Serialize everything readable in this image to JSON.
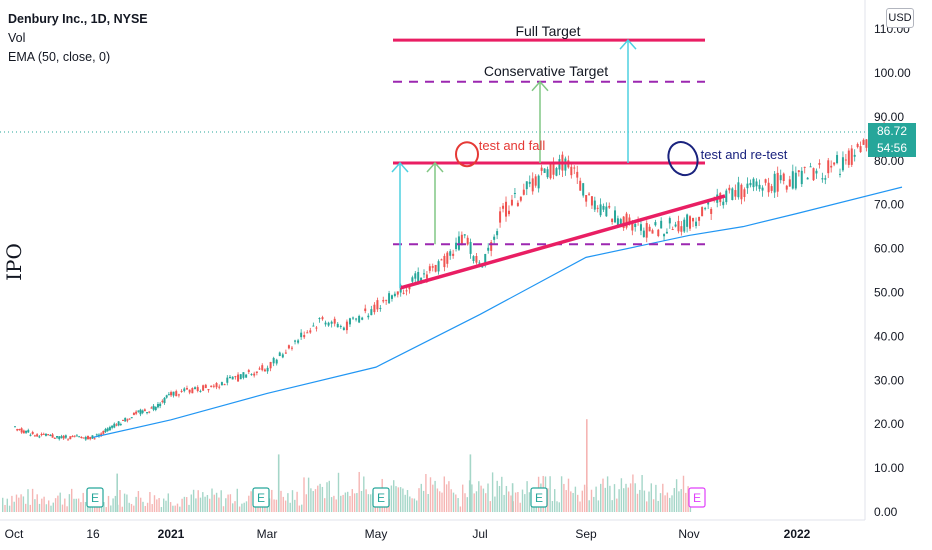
{
  "legend": {
    "symbol": "Denbury Inc., 1D, NYSE",
    "vol": "Vol",
    "ema": "EMA (50, close, 0)"
  },
  "side_label": "IPO",
  "currency_button": "USD",
  "last_price": "86.72",
  "countdown": "54:56",
  "annotations": {
    "full_target": "Full Target",
    "conservative_target": "Conservative Target",
    "test_and_fail": "test and fall",
    "test_and_retest": "test and re-test"
  },
  "earnings_marker": "E",
  "colors": {
    "up": "#26a69a",
    "down": "#ef5350",
    "ema": "#2196f3",
    "trendline": "#e91e63",
    "dashed": "#9c27b0",
    "target_arrow": "#4dd0e1",
    "cons_arrow": "#81c784",
    "retest_circle": "#1a237e",
    "fail_circle": "#e53935"
  },
  "chart_data": {
    "type": "candlestick",
    "title": "Denbury Inc., 1D, NYSE",
    "y_ticks": [
      0,
      10,
      20,
      30,
      40,
      50,
      60,
      70,
      80,
      90,
      100,
      110
    ],
    "ylim": [
      0,
      112
    ],
    "x_ticks": [
      "Oct",
      "16",
      "2021",
      "Mar",
      "May",
      "Jul",
      "Sep",
      "Nov",
      "2022"
    ],
    "levels": {
      "full_target": 107.5,
      "conservative_target": 98,
      "resistance": 79.5,
      "support_dashed": 61
    },
    "trendline": {
      "start": [
        "May",
        51
      ],
      "end": [
        "Nov+",
        72
      ]
    },
    "ema_50": [
      [
        1,
        17
      ],
      [
        2,
        21
      ],
      [
        3,
        27
      ],
      [
        4,
        33
      ],
      [
        5,
        45
      ],
      [
        6,
        58
      ],
      [
        7,
        63
      ],
      [
        7.5,
        65
      ],
      [
        8,
        68
      ],
      [
        9,
        74
      ]
    ],
    "price_path": [
      [
        0,
        19
      ],
      [
        0.3,
        17.5
      ],
      [
        0.6,
        17
      ],
      [
        1,
        17
      ],
      [
        1.2,
        19
      ],
      [
        1.5,
        22
      ],
      [
        1.8,
        24
      ],
      [
        2,
        27
      ],
      [
        2.3,
        28
      ],
      [
        2.6,
        30
      ],
      [
        3,
        33
      ],
      [
        3.3,
        40
      ],
      [
        3.5,
        44
      ],
      [
        3.7,
        42
      ],
      [
        4,
        47
      ],
      [
        4.3,
        52
      ],
      [
        4.6,
        56
      ],
      [
        4.85,
        63
      ],
      [
        5,
        55
      ],
      [
        5.2,
        68
      ],
      [
        5.5,
        75
      ],
      [
        5.8,
        80
      ],
      [
        6,
        72
      ],
      [
        6.2,
        68
      ],
      [
        6.4,
        66
      ],
      [
        6.6,
        64
      ],
      [
        7,
        66
      ],
      [
        7.3,
        72
      ],
      [
        7.6,
        74
      ],
      [
        8,
        76
      ],
      [
        8.3,
        78
      ],
      [
        8.6,
        82
      ],
      [
        8.85,
        86.7
      ]
    ],
    "volume_ylim": [
      0,
      35
    ],
    "volume_spikes": [
      [
        3.1,
        18
      ],
      [
        4.9,
        18
      ],
      [
        6.0,
        29
      ],
      [
        1.3,
        12
      ],
      [
        5.3,
        9
      ]
    ]
  }
}
